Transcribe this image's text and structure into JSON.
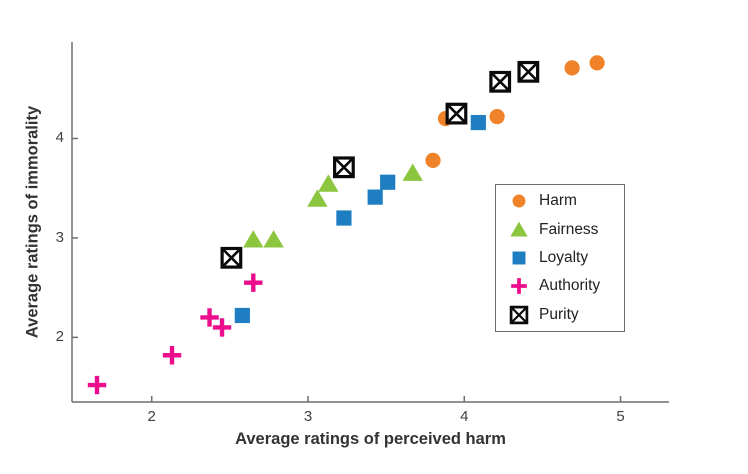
{
  "chart_data": {
    "type": "scatter",
    "title": "",
    "xlabel": "Average ratings of perceived harm",
    "ylabel": "Average ratings of immorality",
    "xlim": [
      1.49,
      5.31
    ],
    "ylim": [
      1.35,
      4.97
    ],
    "x_ticks": [
      2,
      3,
      4,
      5
    ],
    "y_ticks": [
      2,
      3,
      4
    ],
    "x_tick_labels": [
      "2",
      "3",
      "4",
      "5"
    ],
    "y_tick_labels": [
      "2",
      "3",
      "4"
    ],
    "grid": false,
    "legend_position": "inside-lower-right",
    "series": [
      {
        "name": "Harm",
        "marker": "circle",
        "color": "#F0832A",
        "points": [
          [
            3.8,
            3.78
          ],
          [
            3.88,
            4.2
          ],
          [
            4.21,
            4.22
          ],
          [
            4.69,
            4.71
          ],
          [
            4.85,
            4.76
          ]
        ]
      },
      {
        "name": "Fairness",
        "marker": "triangle",
        "color": "#8CC63F",
        "points": [
          [
            2.65,
            2.98
          ],
          [
            2.78,
            2.98
          ],
          [
            3.06,
            3.39
          ],
          [
            3.13,
            3.54
          ],
          [
            3.67,
            3.65
          ]
        ]
      },
      {
        "name": "Loyalty",
        "marker": "square",
        "color": "#1F7EC2",
        "points": [
          [
            2.58,
            2.22
          ],
          [
            3.23,
            3.2
          ],
          [
            3.43,
            3.41
          ],
          [
            3.51,
            3.56
          ],
          [
            4.09,
            4.16
          ]
        ]
      },
      {
        "name": "Authority",
        "marker": "plus",
        "color": "#EB0D8C",
        "points": [
          [
            1.65,
            1.52
          ],
          [
            2.13,
            1.82
          ],
          [
            2.37,
            2.2
          ],
          [
            2.45,
            2.1
          ],
          [
            2.65,
            2.55
          ]
        ]
      },
      {
        "name": "Purity",
        "marker": "square-x",
        "color": "#0A0A0A",
        "points": [
          [
            2.51,
            2.8
          ],
          [
            3.23,
            3.71
          ],
          [
            3.95,
            4.25
          ],
          [
            4.23,
            4.57
          ],
          [
            4.41,
            4.67
          ]
        ]
      }
    ]
  },
  "colors": {
    "background": "#FFFFFF",
    "axis_line": "#6D6E71",
    "tick_label": "#414042",
    "axis_label": "#333333",
    "legend_border": "#6D6E71",
    "legend_text": "#231F20"
  }
}
